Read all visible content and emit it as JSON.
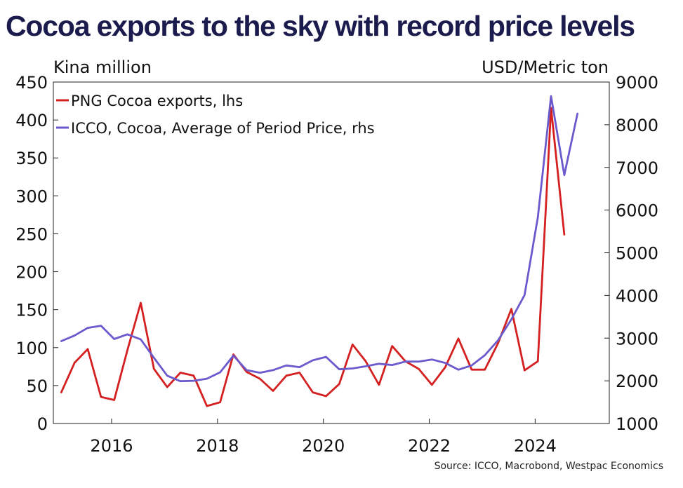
{
  "title": "Cocoa exports to the sky with record price levels",
  "source": "Source: ICCO, Macrobond, Westpac Economics",
  "chart_data": {
    "type": "line",
    "ylabel_left": "Kina million",
    "ylabel_right": "USD/Metric ton",
    "ylim_left": [
      0,
      450
    ],
    "ylim_right": [
      1000,
      9000
    ],
    "yticks_left": [
      "0",
      "50",
      "100",
      "150",
      "200",
      "250",
      "300",
      "350",
      "400",
      "450"
    ],
    "yticks_right": [
      "1000",
      "2000",
      "3000",
      "4000",
      "5000",
      "6000",
      "7000",
      "8000",
      "9000"
    ],
    "xlim": [
      2014.9,
      2025.4
    ],
    "xticks": [
      "2016",
      "2018",
      "2020",
      "2022",
      "2024"
    ],
    "legend": [
      {
        "name": "PNG Cocoa exports, lhs",
        "color": "#d42020"
      },
      {
        "name": "ICCO, Cocoa, Average of Period Price, rhs",
        "color": "#6a5acd"
      }
    ],
    "series": [
      {
        "name": "PNG Cocoa exports, lhs",
        "axis": "left",
        "color": "#d42020",
        "x": [
          2015.05,
          2015.3,
          2015.55,
          2015.8,
          2016.05,
          2016.3,
          2016.55,
          2016.8,
          2017.05,
          2017.3,
          2017.55,
          2017.8,
          2018.05,
          2018.3,
          2018.55,
          2018.8,
          2019.05,
          2019.3,
          2019.55,
          2019.8,
          2020.05,
          2020.3,
          2020.55,
          2020.8,
          2021.05,
          2021.3,
          2021.55,
          2021.8,
          2022.05,
          2022.3,
          2022.55,
          2022.8,
          2023.05,
          2023.3,
          2023.55,
          2023.8,
          2024.05,
          2024.3,
          2024.55
        ],
        "values": [
          41,
          80,
          98,
          35,
          31,
          97,
          159,
          72,
          48,
          67,
          63,
          23,
          28,
          91,
          68,
          59,
          43,
          63,
          67,
          41,
          36,
          52,
          104,
          82,
          51,
          102,
          82,
          72,
          51,
          74,
          112,
          71,
          71,
          106,
          151,
          70,
          82,
          416,
          249
        ]
      },
      {
        "name": "ICCO, Cocoa, Average of Period Price, rhs",
        "axis": "right",
        "color": "#6a5acd",
        "x": [
          2015.05,
          2015.3,
          2015.55,
          2015.8,
          2016.05,
          2016.3,
          2016.55,
          2016.8,
          2017.05,
          2017.3,
          2017.55,
          2017.8,
          2018.05,
          2018.3,
          2018.55,
          2018.8,
          2019.05,
          2019.3,
          2019.55,
          2019.8,
          2020.05,
          2020.3,
          2020.55,
          2020.8,
          2021.05,
          2021.3,
          2021.55,
          2021.8,
          2022.05,
          2022.3,
          2022.55,
          2022.8,
          2023.05,
          2023.3,
          2023.55,
          2023.8,
          2024.05,
          2024.3,
          2024.55,
          2024.8
        ],
        "values": [
          2930,
          3060,
          3240,
          3290,
          2980,
          3090,
          2970,
          2540,
          2120,
          1990,
          2000,
          2050,
          2200,
          2590,
          2250,
          2190,
          2250,
          2360,
          2320,
          2480,
          2560,
          2270,
          2290,
          2340,
          2400,
          2370,
          2450,
          2450,
          2500,
          2420,
          2260,
          2360,
          2600,
          2950,
          3440,
          4010,
          5830,
          8670,
          6820,
          8260
        ]
      }
    ]
  }
}
